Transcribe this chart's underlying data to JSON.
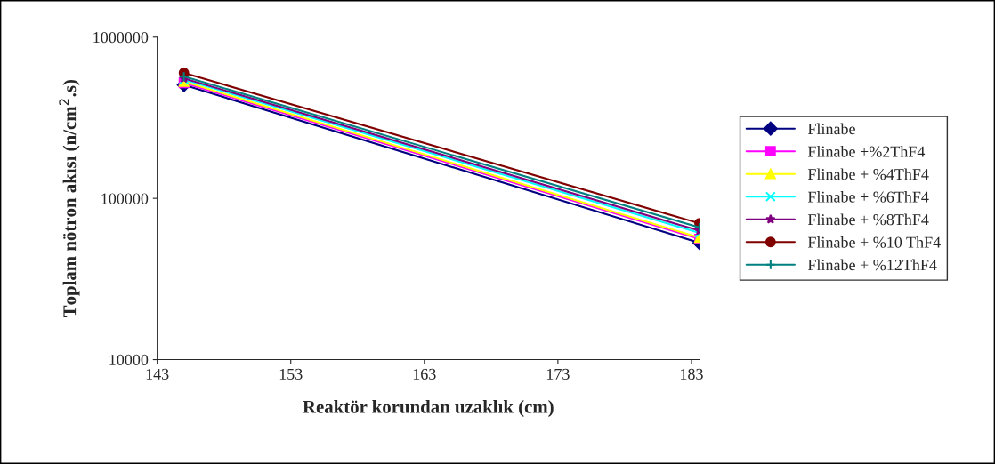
{
  "chart_data": {
    "type": "line",
    "xlabel": "Reaktör korundan uzaklık (cm)",
    "ylabel": "Toplam nötron akısı (n/cm$^{2}$.s)",
    "x": [
      145,
      183.6
    ],
    "xlim": [
      143,
      183.6
    ],
    "xticks": [
      143,
      153,
      163,
      173,
      183
    ],
    "ylim": [
      10000,
      1000000
    ],
    "yticks": [
      10000,
      100000,
      1000000
    ],
    "log": "y",
    "grid": false,
    "legend": "right",
    "line_style": "solid",
    "series": [
      {
        "name": "Flinabe",
        "color": "#000080",
        "marker": "diamond",
        "values": [
          505000,
          53000
        ]
      },
      {
        "name": "Flinabe +%2ThF4",
        "color": "#ff00ff",
        "marker": "square",
        "values": [
          520000,
          56000
        ]
      },
      {
        "name": "Flinabe + %4ThF4",
        "color": "#ffff00",
        "marker": "triangle",
        "values": [
          530000,
          57000
        ]
      },
      {
        "name": "Flinabe + %6ThF4",
        "color": "#00ffff",
        "marker": "cross",
        "values": [
          545000,
          61000
        ]
      },
      {
        "name": "Flinabe + %8ThF4",
        "color": "#800080",
        "marker": "star",
        "values": [
          555000,
          63000
        ]
      },
      {
        "name": "Flinabe + %10 ThF4",
        "color": "#800000",
        "marker": "circle",
        "values": [
          600000,
          70000
        ]
      },
      {
        "name": "Flinabe + %12ThF4",
        "color": "#008080",
        "marker": "plus",
        "values": [
          570000,
          66000
        ]
      }
    ]
  }
}
